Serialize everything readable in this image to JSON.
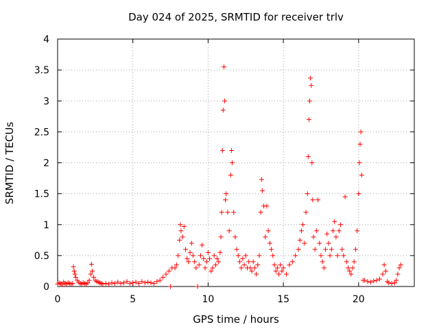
{
  "chart_data": {
    "type": "scatter",
    "title": "Day 024 of 2025, SRMTID for receiver trlv",
    "xlabel": "GPS time / hours",
    "ylabel": "SRMTID / TECUs",
    "xlim": [
      0,
      23.7
    ],
    "ylim": [
      0,
      4
    ],
    "xticks": [
      0,
      5,
      10,
      15,
      20
    ],
    "xtick_labels": [
      "0",
      "5",
      "10",
      "15",
      "20"
    ],
    "yticks": [
      0,
      0.5,
      1,
      1.5,
      2,
      2.5,
      3,
      3.5,
      4
    ],
    "ytick_labels": [
      "0",
      "0.5",
      "1",
      "1.5",
      "2",
      "2.5",
      "3",
      "3.5",
      "4"
    ],
    "grid": true,
    "marker": "+",
    "color": "#ff0000",
    "series": [
      {
        "name": "SRMTID",
        "points": [
          [
            0.0,
            0.04
          ],
          [
            0.1,
            0.06
          ],
          [
            0.2,
            0.05
          ],
          [
            0.3,
            0.03
          ],
          [
            0.4,
            0.07
          ],
          [
            0.5,
            0.05
          ],
          [
            0.6,
            0.04
          ],
          [
            0.7,
            0.06
          ],
          [
            0.8,
            0.05
          ],
          [
            0.9,
            0.04
          ],
          [
            1.0,
            0.05
          ],
          [
            1.05,
            0.32
          ],
          [
            1.1,
            0.25
          ],
          [
            1.15,
            0.2
          ],
          [
            1.2,
            0.15
          ],
          [
            1.3,
            0.1
          ],
          [
            1.4,
            0.07
          ],
          [
            1.5,
            0.05
          ],
          [
            1.6,
            0.04
          ],
          [
            1.7,
            0.06
          ],
          [
            1.8,
            0.05
          ],
          [
            1.9,
            0.04
          ],
          [
            2.0,
            0.06
          ],
          [
            2.1,
            0.1
          ],
          [
            2.2,
            0.2
          ],
          [
            2.25,
            0.36
          ],
          [
            2.3,
            0.25
          ],
          [
            2.4,
            0.15
          ],
          [
            2.5,
            0.1
          ],
          [
            2.6,
            0.08
          ],
          [
            2.7,
            0.07
          ],
          [
            2.8,
            0.06
          ],
          [
            2.9,
            0.05
          ],
          [
            3.0,
            0.04
          ],
          [
            3.2,
            0.05
          ],
          [
            3.4,
            0.04
          ],
          [
            3.6,
            0.06
          ],
          [
            3.8,
            0.05
          ],
          [
            4.0,
            0.07
          ],
          [
            4.2,
            0.05
          ],
          [
            4.4,
            0.06
          ],
          [
            4.6,
            0.08
          ],
          [
            4.8,
            0.05
          ],
          [
            5.0,
            0.06
          ],
          [
            5.2,
            0.07
          ],
          [
            5.4,
            0.05
          ],
          [
            5.6,
            0.08
          ],
          [
            5.8,
            0.06
          ],
          [
            6.0,
            0.07
          ],
          [
            6.2,
            0.06
          ],
          [
            6.4,
            0.05
          ],
          [
            6.6,
            0.08
          ],
          [
            6.8,
            0.1
          ],
          [
            7.0,
            0.15
          ],
          [
            7.2,
            0.2
          ],
          [
            7.4,
            0.25
          ],
          [
            7.5,
            0.0
          ],
          [
            7.6,
            0.3
          ],
          [
            7.8,
            0.3
          ],
          [
            7.9,
            0.35
          ],
          [
            8.0,
            0.5
          ],
          [
            8.1,
            0.75
          ],
          [
            8.15,
            1.0
          ],
          [
            8.2,
            0.9
          ],
          [
            8.3,
            0.8
          ],
          [
            8.4,
            0.97
          ],
          [
            8.5,
            0.6
          ],
          [
            8.6,
            0.45
          ],
          [
            8.7,
            0.4
          ],
          [
            8.8,
            0.55
          ],
          [
            8.9,
            0.7
          ],
          [
            9.0,
            0.5
          ],
          [
            9.1,
            0.4
          ],
          [
            9.2,
            0.3
          ],
          [
            9.3,
            0.0
          ],
          [
            9.4,
            0.35
          ],
          [
            9.5,
            0.5
          ],
          [
            9.6,
            0.67
          ],
          [
            9.7,
            0.45
          ],
          [
            9.8,
            0.3
          ],
          [
            9.9,
            0.4
          ],
          [
            10.0,
            0.55
          ],
          [
            10.1,
            0.45
          ],
          [
            10.2,
            0.25
          ],
          [
            10.3,
            0.3
          ],
          [
            10.4,
            0.5
          ],
          [
            10.5,
            0.35
          ],
          [
            10.6,
            0.45
          ],
          [
            10.7,
            0.4
          ],
          [
            10.8,
            0.55
          ],
          [
            10.85,
            0.8
          ],
          [
            10.9,
            1.2
          ],
          [
            10.95,
            2.2
          ],
          [
            11.0,
            2.85
          ],
          [
            11.05,
            3.55
          ],
          [
            11.1,
            3.0
          ],
          [
            11.15,
            1.4
          ],
          [
            11.2,
            1.5
          ],
          [
            11.3,
            1.2
          ],
          [
            11.4,
            0.9
          ],
          [
            11.5,
            1.8
          ],
          [
            11.55,
            2.2
          ],
          [
            11.6,
            2.0
          ],
          [
            11.7,
            1.2
          ],
          [
            11.8,
            0.8
          ],
          [
            11.9,
            0.6
          ],
          [
            12.0,
            0.5
          ],
          [
            12.1,
            0.4
          ],
          [
            12.2,
            0.3
          ],
          [
            12.3,
            0.45
          ],
          [
            12.4,
            0.35
          ],
          [
            12.5,
            0.5
          ],
          [
            12.6,
            0.3
          ],
          [
            12.7,
            0.4
          ],
          [
            12.8,
            0.3
          ],
          [
            12.9,
            0.25
          ],
          [
            13.0,
            0.4
          ],
          [
            13.1,
            0.3
          ],
          [
            13.2,
            0.2
          ],
          [
            13.3,
            0.35
          ],
          [
            13.4,
            0.5
          ],
          [
            13.5,
            1.2
          ],
          [
            13.55,
            1.73
          ],
          [
            13.6,
            1.55
          ],
          [
            13.7,
            1.3
          ],
          [
            13.8,
            0.8
          ],
          [
            13.9,
            1.3
          ],
          [
            14.0,
            0.9
          ],
          [
            14.1,
            0.7
          ],
          [
            14.2,
            0.6
          ],
          [
            14.3,
            0.5
          ],
          [
            14.4,
            0.35
          ],
          [
            14.5,
            0.25
          ],
          [
            14.6,
            0.3
          ],
          [
            14.7,
            0.2
          ],
          [
            14.8,
            0.35
          ],
          [
            14.9,
            0.25
          ],
          [
            15.0,
            0.3
          ],
          [
            15.2,
            0.2
          ],
          [
            15.4,
            0.35
          ],
          [
            15.6,
            0.4
          ],
          [
            15.8,
            0.5
          ],
          [
            16.0,
            0.6
          ],
          [
            16.1,
            0.75
          ],
          [
            16.2,
            0.9
          ],
          [
            16.3,
            1.0
          ],
          [
            16.4,
            0.7
          ],
          [
            16.5,
            1.2
          ],
          [
            16.6,
            1.5
          ],
          [
            16.65,
            2.1
          ],
          [
            16.7,
            2.7
          ],
          [
            16.75,
            3.0
          ],
          [
            16.8,
            3.37
          ],
          [
            16.85,
            3.25
          ],
          [
            16.9,
            2.0
          ],
          [
            16.95,
            1.4
          ],
          [
            17.0,
            0.8
          ],
          [
            17.1,
            0.6
          ],
          [
            17.2,
            0.9
          ],
          [
            17.3,
            1.4
          ],
          [
            17.4,
            0.7
          ],
          [
            17.5,
            0.5
          ],
          [
            17.6,
            0.4
          ],
          [
            17.7,
            0.3
          ],
          [
            17.8,
            0.6
          ],
          [
            17.9,
            0.85
          ],
          [
            18.0,
            0.7
          ],
          [
            18.1,
            0.5
          ],
          [
            18.2,
            0.6
          ],
          [
            18.3,
            0.9
          ],
          [
            18.4,
            1.05
          ],
          [
            18.5,
            0.8
          ],
          [
            18.6,
            0.5
          ],
          [
            18.7,
            0.9
          ],
          [
            18.8,
            1.0
          ],
          [
            18.9,
            0.6
          ],
          [
            19.0,
            0.5
          ],
          [
            19.1,
            1.45
          ],
          [
            19.2,
            0.4
          ],
          [
            19.3,
            0.3
          ],
          [
            19.4,
            0.25
          ],
          [
            19.5,
            0.2
          ],
          [
            19.6,
            0.3
          ],
          [
            19.7,
            0.4
          ],
          [
            19.8,
            0.6
          ],
          [
            19.9,
            0.9
          ],
          [
            20.0,
            1.5
          ],
          [
            20.05,
            2.0
          ],
          [
            20.1,
            2.3
          ],
          [
            20.15,
            2.5
          ],
          [
            20.2,
            1.8
          ],
          [
            20.3,
            0.1
          ],
          [
            20.4,
            0.1
          ],
          [
            20.6,
            0.08
          ],
          [
            20.8,
            0.07
          ],
          [
            21.0,
            0.09
          ],
          [
            21.2,
            0.1
          ],
          [
            21.4,
            0.12
          ],
          [
            21.6,
            0.2
          ],
          [
            21.7,
            0.35
          ],
          [
            21.8,
            0.25
          ],
          [
            21.9,
            0.08
          ],
          [
            22.0,
            0.06
          ],
          [
            22.2,
            0.05
          ],
          [
            22.4,
            0.06
          ],
          [
            22.5,
            0.1
          ],
          [
            22.6,
            0.2
          ],
          [
            22.7,
            0.3
          ],
          [
            22.8,
            0.35
          ]
        ]
      }
    ]
  }
}
